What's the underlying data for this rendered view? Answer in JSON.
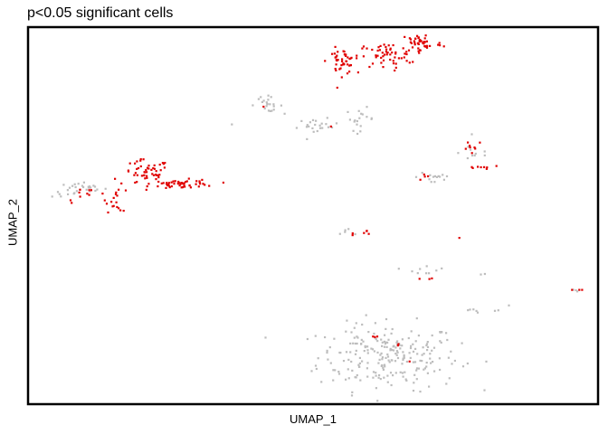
{
  "chart_data": {
    "type": "scatter",
    "title": "p<0.05 significant cells",
    "xlabel": "UMAP_1",
    "ylabel": "UMAP_2",
    "xlim": [
      -12,
      12
    ],
    "ylim": [
      -10,
      10
    ],
    "grid": false,
    "axis_ticks": false,
    "legend": "none",
    "colors": {
      "significant": "#e00000",
      "not_significant": "#bdbdbd"
    },
    "series": [
      {
        "color_key": "not_significant",
        "clusters": [
          {
            "cx": 3.2,
            "cy": -7.6,
            "sx": 1.5,
            "sy": 0.9,
            "n": 230
          },
          {
            "cx": 1.8,
            "cy": -6.3,
            "sx": 0.2,
            "sy": 0.3,
            "n": 6
          },
          {
            "cx": 7.3,
            "cy": -5.0,
            "sx": 0.5,
            "sy": 0.1,
            "n": 8
          },
          {
            "cx": 4.8,
            "cy": -2.9,
            "sx": 0.4,
            "sy": 0.2,
            "n": 9
          },
          {
            "cx": 0.2,
            "cy": 4.8,
            "sx": 0.45,
            "sy": 0.2,
            "n": 22
          },
          {
            "cx": 2.0,
            "cy": 5.2,
            "sx": 0.3,
            "sy": 0.3,
            "n": 18
          },
          {
            "cx": -2.0,
            "cy": 6.0,
            "sx": 0.35,
            "sy": 0.2,
            "n": 22
          },
          {
            "cx": -9.9,
            "cy": 1.4,
            "sx": 0.6,
            "sy": 0.2,
            "n": 30
          },
          {
            "cx": 5.2,
            "cy": 2.1,
            "sx": 0.4,
            "sy": 0.25,
            "n": 14
          },
          {
            "cx": 6.9,
            "cy": 3.4,
            "sx": 0.35,
            "sy": 0.3,
            "n": 10
          },
          {
            "cx": 1.5,
            "cy": -0.9,
            "sx": 0.3,
            "sy": 0.15,
            "n": 5
          },
          {
            "cx": 11.2,
            "cy": -4.0,
            "sx": 0.2,
            "sy": 0.05,
            "n": 3
          },
          {
            "cx": 7.2,
            "cy": -3.2,
            "sx": 0.1,
            "sy": 0.05,
            "n": 2
          },
          {
            "cx": -3.5,
            "cy": 5.0,
            "sx": 0.05,
            "sy": 0.05,
            "n": 1
          }
        ]
      },
      {
        "color_key": "significant",
        "clusters": [
          {
            "cx": -7.1,
            "cy": 2.3,
            "sx": 0.5,
            "sy": 0.35,
            "n": 50
          },
          {
            "cx": -5.5,
            "cy": 1.7,
            "sx": 0.7,
            "sy": 0.12,
            "n": 50
          },
          {
            "cx": -8.3,
            "cy": 0.9,
            "sx": 0.25,
            "sy": 0.35,
            "n": 18
          },
          {
            "cx": -9.6,
            "cy": 1.1,
            "sx": 0.5,
            "sy": 0.2,
            "n": 10
          },
          {
            "cx": 1.2,
            "cy": 8.3,
            "sx": 0.3,
            "sy": 0.35,
            "n": 45
          },
          {
            "cx": 3.1,
            "cy": 8.6,
            "sx": 0.6,
            "sy": 0.35,
            "n": 55
          },
          {
            "cx": 4.6,
            "cy": 9.3,
            "sx": 0.45,
            "sy": 0.3,
            "n": 45
          },
          {
            "cx": 6.8,
            "cy": 3.8,
            "sx": 0.25,
            "sy": 0.15,
            "n": 8
          },
          {
            "cx": 7.2,
            "cy": 2.6,
            "sx": 0.4,
            "sy": 0.1,
            "n": 8
          },
          {
            "cx": 4.8,
            "cy": 2.1,
            "sx": 0.2,
            "sy": 0.1,
            "n": 4
          },
          {
            "cx": 2.3,
            "cy": -1.0,
            "sx": 0.15,
            "sy": 0.1,
            "n": 4
          },
          {
            "cx": 4.9,
            "cy": -3.4,
            "sx": 0.2,
            "sy": 0.05,
            "n": 3
          },
          {
            "cx": 2.6,
            "cy": -6.5,
            "sx": 0.1,
            "sy": 0.05,
            "n": 3
          },
          {
            "cx": 11.3,
            "cy": -4.0,
            "sx": 0.1,
            "sy": 0.05,
            "n": 3
          },
          {
            "cx": 6.2,
            "cy": -1.2,
            "sx": 0.02,
            "sy": 0.02,
            "n": 1
          },
          {
            "cx": 3.6,
            "cy": -7.0,
            "sx": 0.05,
            "sy": 0.05,
            "n": 2
          },
          {
            "cx": 1.6,
            "cy": -1.0,
            "sx": 0.05,
            "sy": 0.05,
            "n": 2
          },
          {
            "cx": 4.1,
            "cy": -7.8,
            "sx": 0.05,
            "sy": 0.05,
            "n": 1
          },
          {
            "cx": -2.0,
            "cy": 5.9,
            "sx": 0.05,
            "sy": 0.05,
            "n": 1
          },
          {
            "cx": 0.7,
            "cy": 4.8,
            "sx": 0.05,
            "sy": 0.05,
            "n": 1
          }
        ]
      }
    ]
  }
}
